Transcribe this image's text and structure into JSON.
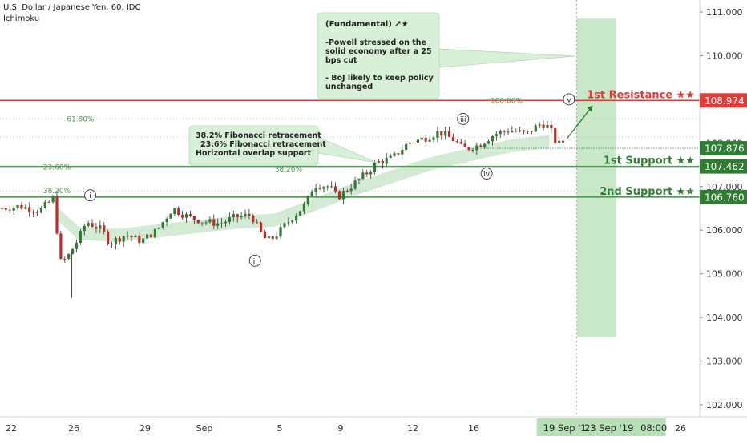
{
  "header": {
    "symbol_line": "U.S. Dollar / Japanese Yen, 60, IDC",
    "indicator": "Ichimoku"
  },
  "colors": {
    "up_candle": "#2e7d32",
    "down_candle": "#c62828",
    "resistance": "#e53935",
    "support": "#43a047",
    "support_label_text": "#2e7d32",
    "callout_fill": "#d8efd8",
    "cloud": "#c8e6c9",
    "fib_text": "#4a9a4a",
    "current_price_badge": "#2e7d32"
  },
  "chart_data": {
    "type": "candlestick",
    "ylim": [
      101.8,
      111.3
    ],
    "y_ticks": [
      "111.000",
      "110.000",
      "109.000",
      "108.000",
      "107.000",
      "106.000",
      "105.000",
      "104.000",
      "103.000",
      "102.000"
    ],
    "x_ticks": [
      "22",
      "26",
      "29",
      "Sep",
      "5",
      "9",
      "12",
      "16",
      "19",
      "23",
      "26"
    ],
    "x_highlight": [
      "19 Sep '1",
      "23 Sep '19",
      "08:00"
    ],
    "price_path": [
      [
        0,
        106.5
      ],
      [
        5,
        106.55
      ],
      [
        10,
        106.45
      ],
      [
        14,
        106.75
      ],
      [
        15,
        105.25
      ],
      [
        17,
        105.35
      ],
      [
        20,
        105.8
      ],
      [
        22,
        106.2
      ],
      [
        26,
        106.0
      ],
      [
        28,
        105.7
      ],
      [
        32,
        105.9
      ],
      [
        36,
        105.75
      ],
      [
        40,
        106.0
      ],
      [
        44,
        106.5
      ],
      [
        48,
        106.3
      ],
      [
        52,
        106.2
      ],
      [
        56,
        106.15
      ],
      [
        60,
        106.3
      ],
      [
        64,
        106.35
      ],
      [
        66,
        106.0
      ],
      [
        68,
        105.75
      ],
      [
        70,
        105.85
      ],
      [
        74,
        106.25
      ],
      [
        78,
        106.6
      ],
      [
        80,
        107.05
      ],
      [
        84,
        107.0
      ],
      [
        86,
        106.75
      ],
      [
        90,
        107.05
      ],
      [
        94,
        107.35
      ],
      [
        96,
        107.55
      ],
      [
        100,
        107.65
      ],
      [
        104,
        108.0
      ],
      [
        108,
        108.1
      ],
      [
        112,
        108.25
      ],
      [
        116,
        108.05
      ],
      [
        118,
        107.85
      ],
      [
        122,
        107.95
      ],
      [
        126,
        108.2
      ],
      [
        130,
        108.3
      ],
      [
        134,
        108.2
      ],
      [
        138,
        108.45
      ],
      [
        140,
        108.35
      ],
      [
        142,
        107.95
      ],
      [
        144,
        108.05
      ]
    ],
    "cloud_path": [
      [
        14,
        106.5
      ],
      [
        20,
        106.0
      ],
      [
        30,
        105.95
      ],
      [
        40,
        106.05
      ],
      [
        50,
        106.15
      ],
      [
        60,
        106.25
      ],
      [
        70,
        106.3
      ],
      [
        80,
        106.65
      ],
      [
        90,
        107.0
      ],
      [
        100,
        107.3
      ],
      [
        110,
        107.6
      ],
      [
        120,
        107.8
      ],
      [
        130,
        108.0
      ],
      [
        140,
        108.1
      ]
    ],
    "forecast_zone": {
      "x_start": 147,
      "x_end": 157,
      "y_low": 103.55,
      "y_high": 110.85
    },
    "levels": [
      {
        "name": "1st Resistance",
        "label": "1st Resistance ★★",
        "value": "108.974",
        "price": 108.974,
        "kind": "resistance"
      },
      {
        "name": "1st Support",
        "label": "1st Support ★★",
        "value": "107.462",
        "price": 107.462,
        "kind": "support"
      },
      {
        "name": "2nd Support",
        "label": "2nd Support ★★",
        "value": "106.760",
        "price": 106.76,
        "kind": "support"
      }
    ],
    "current_price": {
      "value": "107.876",
      "price": 107.876
    },
    "fib_labels": [
      {
        "text": "100.00%",
        "x": 125,
        "price": 108.97
      },
      {
        "text": "61.80%",
        "x": 17,
        "price": 108.55
      },
      {
        "text": "23.60%",
        "x": 11,
        "price": 107.45
      },
      {
        "text": "38.20%",
        "x": 70,
        "price": 107.4
      },
      {
        "text": "38.20%",
        "x": 11,
        "price": 106.9
      }
    ],
    "wave_labels": [
      {
        "text": "i",
        "x": 23,
        "price": 106.8
      },
      {
        "text": "ii",
        "x": 65,
        "price": 105.3
      },
      {
        "text": "iii",
        "x": 118,
        "price": 108.55
      },
      {
        "text": "iv",
        "x": 124,
        "price": 107.3
      },
      {
        "text": "v",
        "x": 145,
        "price": 109.0
      }
    ],
    "annotations": {
      "fundamental": {
        "title": "(Fundamental) ↗★",
        "lines": [
          "-Powell stressed on the",
          "solid economy after a 25",
          "bps cut",
          "",
          "- BoJ likely to keep policy",
          "unchanged"
        ]
      },
      "fib_note": {
        "lines": [
          "38.2% Fibonacci retracement",
          "23.6% Fibonacci retracement",
          "Horizontal overlap support"
        ]
      }
    }
  }
}
